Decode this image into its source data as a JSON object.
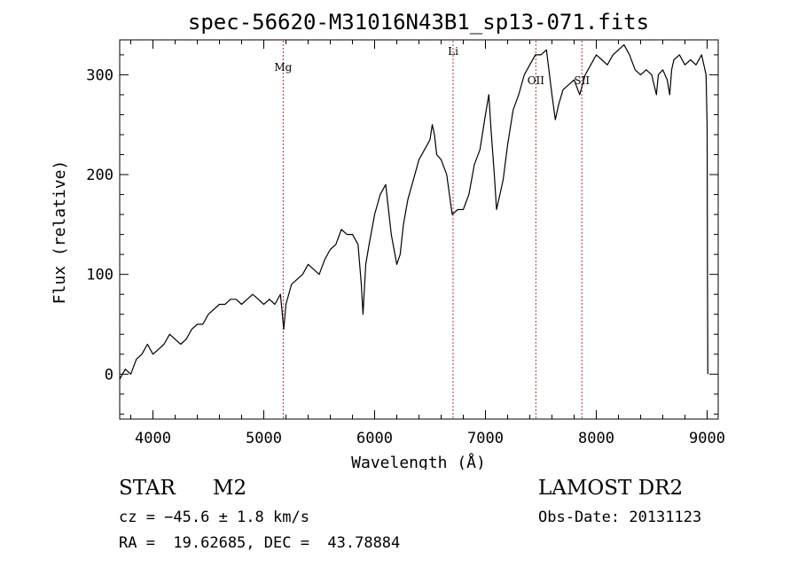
{
  "chart_data": {
    "type": "line",
    "title": "spec-56620-M31016N43B1_sp13-071.fits",
    "xlabel": "Wavelength (Å)",
    "ylabel": "Flux (relative)",
    "xlim": [
      3700,
      9100
    ],
    "ylim": [
      -45,
      335
    ],
    "xticks": [
      "4000",
      "5000",
      "6000",
      "7000",
      "8000",
      "9000"
    ],
    "yticks": [
      "0",
      "100",
      "200",
      "300"
    ],
    "grid": false,
    "series": [
      {
        "x": [
          3700,
          3750,
          3800,
          3850,
          3900,
          3950,
          4000,
          4050,
          4100,
          4150,
          4200,
          4250,
          4300,
          4350,
          4400,
          4450,
          4500,
          4550,
          4600,
          4650,
          4700,
          4750,
          4800,
          4850,
          4900,
          4950,
          5000,
          5050,
          5100,
          5150,
          5180,
          5200,
          5250,
          5300,
          5350,
          5400,
          5450,
          5500,
          5550,
          5600,
          5650,
          5700,
          5750,
          5800,
          5850,
          5880,
          5895,
          5920,
          5950,
          6000,
          6050,
          6100,
          6150,
          6200,
          6230,
          6260,
          6300,
          6350,
          6400,
          6450,
          6500,
          6520,
          6540,
          6560,
          6600,
          6650,
          6700,
          6750,
          6800,
          6850,
          6900,
          6950,
          7000,
          7030,
          7050,
          7080,
          7100,
          7130,
          7160,
          7200,
          7250,
          7300,
          7350,
          7400,
          7450,
          7500,
          7550,
          7600,
          7630,
          7660,
          7700,
          7750,
          7800,
          7850,
          7900,
          7950,
          8000,
          8050,
          8100,
          8150,
          8200,
          8250,
          8300,
          8350,
          8400,
          8450,
          8500,
          8542,
          8560,
          8600,
          8640,
          8662,
          8680,
          8700,
          8750,
          8800,
          8850,
          8900,
          8950,
          8990,
          9000,
          9003,
          9006
        ],
        "values": [
          -5,
          5,
          0,
          15,
          20,
          30,
          20,
          25,
          30,
          40,
          35,
          30,
          35,
          45,
          50,
          50,
          60,
          65,
          70,
          70,
          75,
          75,
          70,
          75,
          80,
          75,
          70,
          75,
          70,
          80,
          45,
          70,
          90,
          95,
          100,
          110,
          105,
          100,
          115,
          125,
          130,
          145,
          140,
          140,
          130,
          90,
          60,
          110,
          130,
          160,
          180,
          190,
          140,
          110,
          120,
          150,
          175,
          195,
          215,
          225,
          235,
          250,
          240,
          220,
          215,
          200,
          160,
          165,
          165,
          180,
          210,
          225,
          260,
          280,
          245,
          200,
          165,
          180,
          195,
          230,
          265,
          280,
          300,
          310,
          320,
          320,
          325,
          280,
          255,
          270,
          285,
          290,
          295,
          280,
          300,
          310,
          320,
          315,
          310,
          320,
          325,
          330,
          320,
          305,
          300,
          305,
          300,
          280,
          300,
          305,
          295,
          280,
          305,
          315,
          320,
          310,
          315,
          310,
          320,
          300,
          250,
          100,
          0
        ]
      }
    ],
    "lines": [
      {
        "label": "Mg",
        "x": 5175
      },
      {
        "label": "Li",
        "x": 6708
      },
      {
        "label": "OII",
        "x": 7455
      },
      {
        "label": "SII",
        "x": 7870
      }
    ]
  },
  "info": {
    "class": "STAR",
    "subclass": "M2",
    "survey": "LAMOST DR2",
    "cz": "cz = −45.6 ± 1.8 km/s",
    "obs_date": "Obs-Date: 20131123",
    "radec": "RA =  19.62685, DEC =  43.78884"
  }
}
